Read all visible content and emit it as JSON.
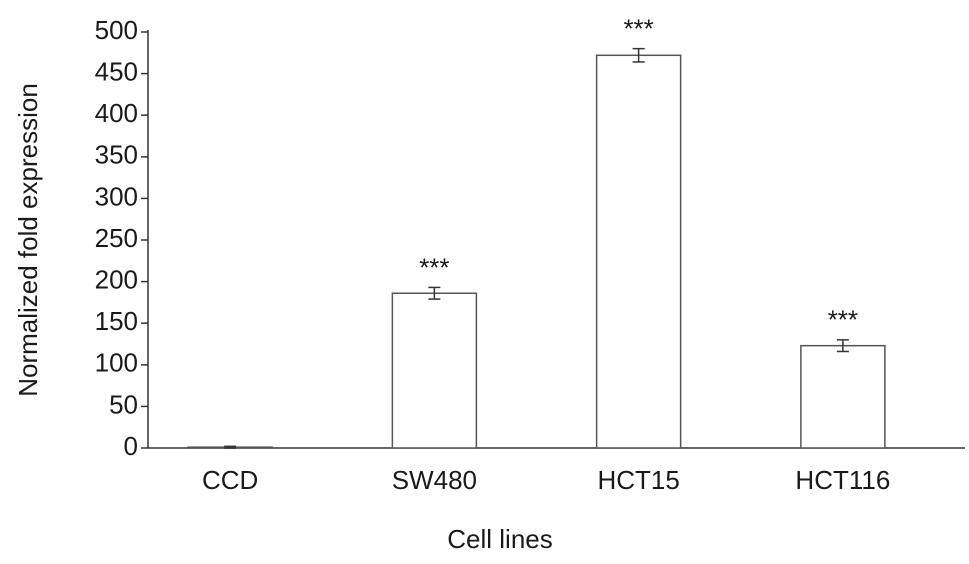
{
  "chart_data": {
    "type": "bar",
    "x_label": "Cell lines",
    "y_label": "Normalized fold expression",
    "categories": [
      "CCD",
      "SW480",
      "HCT15",
      "HCT116"
    ],
    "values": [
      1,
      186,
      472,
      123
    ],
    "errors": [
      1,
      7,
      8,
      7
    ],
    "annotations": [
      null,
      "***",
      "***",
      "***"
    ],
    "color": "#ffffff",
    "edge_color": "#555555",
    "ylim": [
      0,
      500
    ],
    "yticks": [
      0,
      50,
      100,
      150,
      200,
      250,
      300,
      350,
      400,
      450,
      500
    ],
    "grid": false
  }
}
